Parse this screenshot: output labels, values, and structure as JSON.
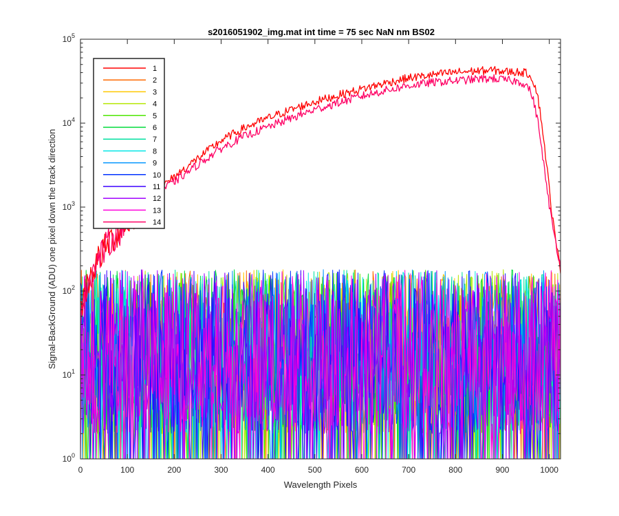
{
  "chart_data": {
    "type": "line",
    "title": "s2016051902_img.mat int time = 75 sec  NaN nm BS02",
    "xlabel": "Wavelength Pixels",
    "ylabel": "Signal-BackGround (ADU) one pixel down the track direction",
    "xlim": [
      0,
      1024
    ],
    "ylim": [
      1,
      100000
    ],
    "yscale": "log",
    "x_ticks": [
      "0",
      "100",
      "200",
      "300",
      "400",
      "500",
      "600",
      "700",
      "800",
      "900",
      "1000"
    ],
    "y_ticks": [
      {
        "base": "10",
        "exp": "0"
      },
      {
        "base": "10",
        "exp": "1"
      },
      {
        "base": "10",
        "exp": "2"
      },
      {
        "base": "10",
        "exp": "3"
      },
      {
        "base": "10",
        "exp": "4"
      },
      {
        "base": "10",
        "exp": "5"
      }
    ],
    "grid": false,
    "legend_position": "top-left",
    "series": [
      {
        "name": "1",
        "color": "#FF0000",
        "signal": true,
        "x": [
          0,
          20,
          40,
          60,
          80,
          100,
          130,
          160,
          200,
          250,
          300,
          350,
          400,
          450,
          500,
          550,
          600,
          650,
          700,
          750,
          800,
          850,
          880,
          910,
          940,
          955,
          965,
          975,
          985,
          995,
          1005,
          1015,
          1024
        ],
        "y": [
          60,
          150,
          250,
          380,
          500,
          650,
          1000,
          1500,
          2300,
          3800,
          6200,
          8800,
          11500,
          14500,
          18000,
          21500,
          25500,
          30000,
          34500,
          37500,
          40500,
          42000,
          42500,
          41000,
          40500,
          39000,
          33000,
          22000,
          9000,
          3000,
          900,
          350,
          180
        ]
      },
      {
        "name": "2",
        "color": "#FF6A00",
        "signal": false
      },
      {
        "name": "3",
        "color": "#FFC800",
        "signal": false
      },
      {
        "name": "4",
        "color": "#B4E600",
        "signal": false
      },
      {
        "name": "5",
        "color": "#4CE600",
        "signal": false
      },
      {
        "name": "6",
        "color": "#00DC3C",
        "signal": false
      },
      {
        "name": "7",
        "color": "#00E0A0",
        "signal": false
      },
      {
        "name": "8",
        "color": "#00E6E6",
        "signal": false
      },
      {
        "name": "9",
        "color": "#0096FF",
        "signal": false
      },
      {
        "name": "10",
        "color": "#0032FF",
        "signal": false
      },
      {
        "name": "11",
        "color": "#3C00FF",
        "signal": false
      },
      {
        "name": "12",
        "color": "#A000FF",
        "signal": false
      },
      {
        "name": "13",
        "color": "#FF00DC",
        "signal": false
      },
      {
        "name": "14",
        "color": "#FF0064",
        "signal": true,
        "x": [
          0,
          20,
          40,
          60,
          80,
          100,
          130,
          160,
          200,
          250,
          300,
          350,
          400,
          450,
          500,
          550,
          600,
          650,
          700,
          750,
          800,
          850,
          880,
          910,
          930,
          945,
          955,
          965,
          975,
          985,
          995,
          1005,
          1015,
          1024
        ],
        "y": [
          60,
          150,
          250,
          380,
          500,
          650,
          1000,
          1450,
          2000,
          3200,
          5000,
          7000,
          9000,
          11500,
          14500,
          17500,
          21000,
          24500,
          28000,
          30500,
          32000,
          33500,
          34000,
          32500,
          31500,
          30000,
          27000,
          20000,
          11000,
          4500,
          1600,
          700,
          350,
          200
        ]
      }
    ],
    "noise_band": {
      "low": 1,
      "typical": 40,
      "high": 180,
      "note_range": "approx 1 to 200 ADU across all pixels"
    }
  }
}
